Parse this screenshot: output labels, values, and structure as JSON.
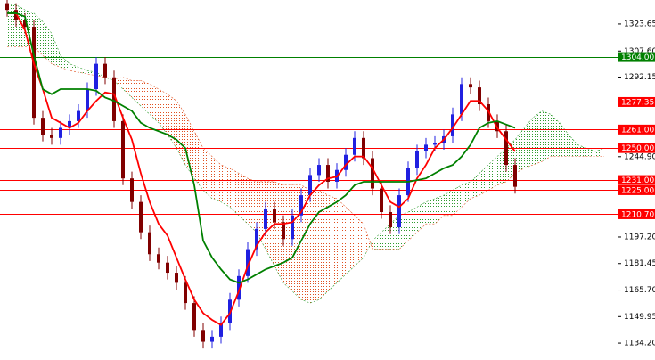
{
  "chart_data": {
    "type": "ichimoku",
    "ylim": [
      1126.3,
      1337.9
    ],
    "yticks": [
      1323.65,
      {
        "value": 1307.6,
        "label": "1307.60"
      },
      1292.15,
      {
        "value": 1244.9,
        "label": "1244.90"
      },
      {
        "value": 1197.2,
        "label": "1197.20"
      },
      1181.45,
      {
        "value": 1165.7,
        "label": "1165.70"
      },
      1149.95,
      {
        "value": 1134.2,
        "label": "1134.20"
      }
    ],
    "candles": {
      "up_color": "#2020e0",
      "down_color": "#800000",
      "open": [
        1336,
        1332,
        1326,
        1322,
        1268,
        1258,
        1256,
        1262,
        1266,
        1272,
        1285,
        1300,
        1292,
        1266,
        1232,
        1218,
        1200,
        1187,
        1182,
        1176,
        1170,
        1158,
        1142,
        1135,
        1138,
        1146,
        1160,
        1174,
        1190,
        1202,
        1214,
        1206,
        1196,
        1210,
        1222,
        1234,
        1240,
        1230,
        1237,
        1246,
        1256,
        1244,
        1226,
        1212,
        1203,
        1222,
        1238,
        1248,
        1252,
        1253,
        1257,
        1270,
        1288,
        1286,
        1276,
        1266,
        1260,
        1240
      ],
      "high": [
        1340,
        1336,
        1330,
        1326,
        1272,
        1262,
        1266,
        1270,
        1276,
        1289,
        1304,
        1304,
        1296,
        1270,
        1236,
        1222,
        1204,
        1191,
        1186,
        1180,
        1174,
        1162,
        1146,
        1142,
        1150,
        1164,
        1178,
        1194,
        1206,
        1218,
        1218,
        1210,
        1214,
        1226,
        1238,
        1244,
        1244,
        1241,
        1250,
        1260,
        1260,
        1248,
        1230,
        1216,
        1226,
        1242,
        1252,
        1256,
        1257,
        1261,
        1274,
        1292,
        1292,
        1290,
        1280,
        1270,
        1264,
        1244
      ],
      "low": [
        1328,
        1322,
        1318,
        1264,
        1254,
        1252,
        1252,
        1258,
        1262,
        1268,
        1281,
        1288,
        1262,
        1228,
        1214,
        1196,
        1183,
        1178,
        1172,
        1166,
        1154,
        1138,
        1131,
        1131,
        1134,
        1142,
        1156,
        1170,
        1186,
        1198,
        1202,
        1192,
        1192,
        1206,
        1218,
        1230,
        1226,
        1226,
        1233,
        1242,
        1240,
        1222,
        1208,
        1199,
        1199,
        1218,
        1234,
        1244,
        1248,
        1249,
        1253,
        1266,
        1282,
        1272,
        1262,
        1256,
        1236,
        1223
      ],
      "close": [
        1332,
        1326,
        1322,
        1268,
        1258,
        1256,
        1262,
        1266,
        1272,
        1285,
        1300,
        1292,
        1266,
        1232,
        1218,
        1200,
        1187,
        1182,
        1176,
        1170,
        1158,
        1142,
        1135,
        1138,
        1146,
        1160,
        1174,
        1190,
        1202,
        1214,
        1206,
        1196,
        1210,
        1222,
        1234,
        1240,
        1230,
        1237,
        1246,
        1256,
        1244,
        1226,
        1212,
        1203,
        1222,
        1238,
        1248,
        1252,
        1253,
        1257,
        1270,
        1288,
        1286,
        1276,
        1266,
        1260,
        1240,
        1227
      ]
    },
    "series": [
      {
        "color": "#ff0000",
        "values": [
          1330,
          1330,
          1320,
          1300,
          1285,
          1268,
          1265,
          1262,
          1265,
          1272,
          1278,
          1283,
          1282,
          1268,
          1255,
          1235,
          1218,
          1205,
          1198,
          1185,
          1172,
          1160,
          1152,
          1148,
          1145,
          1152,
          1165,
          1180,
          1192,
          1200,
          1205,
          1205,
          1206,
          1212,
          1222,
          1228,
          1232,
          1233,
          1240,
          1245,
          1245,
          1238,
          1228,
          1218,
          1215,
          1220,
          1232,
          1240,
          1250,
          1255,
          1262,
          1270,
          1278,
          1278,
          1272,
          1262,
          1255,
          1248
        ]
      },
      {
        "color": "#008000",
        "values": [
          1330,
          1330,
          1328,
          1305,
          1285,
          1282,
          1285,
          1285,
          1285,
          1285,
          1284,
          1280,
          1278,
          1275,
          1272,
          1265,
          1262,
          1260,
          1258,
          1255,
          1250,
          1228,
          1195,
          1185,
          1178,
          1172,
          1170,
          1172,
          1175,
          1178,
          1180,
          1182,
          1185,
          1195,
          1205,
          1212,
          1215,
          1218,
          1222,
          1228,
          1230,
          1230,
          1230,
          1230,
          1230,
          1230,
          1231,
          1232,
          1235,
          1238,
          1240,
          1245,
          1252,
          1262,
          1265,
          1266,
          1264,
          1262
        ]
      }
    ],
    "cloud": {
      "up_color": "#2e9b2e",
      "down_color": "#e05020",
      "span_a": [
        1335,
        1335,
        1332,
        1330,
        1325,
        1318,
        1305,
        1300,
        1298,
        1296,
        1295,
        1292,
        1290,
        1285,
        1280,
        1275,
        1270,
        1265,
        1258,
        1250,
        1240,
        1232,
        1225,
        1220,
        1218,
        1215,
        1210,
        1205,
        1200,
        1190,
        1180,
        1170,
        1165,
        1160,
        1158,
        1160,
        1165,
        1170,
        1175,
        1180,
        1185,
        1195,
        1200,
        1205,
        1210,
        1212,
        1215,
        1218,
        1220,
        1222,
        1225,
        1228,
        1230,
        1235,
        1240,
        1245,
        1250,
        1255,
        1262,
        1268,
        1272,
        1270,
        1265,
        1258,
        1252,
        1250,
        1248,
        1250
      ],
      "span_b": [
        1310,
        1310,
        1310,
        1310,
        1305,
        1300,
        1298,
        1296,
        1295,
        1294,
        1293,
        1292,
        1291,
        1292,
        1290,
        1290,
        1288,
        1285,
        1282,
        1278,
        1270,
        1260,
        1250,
        1245,
        1240,
        1238,
        1235,
        1232,
        1230,
        1230,
        1230,
        1228,
        1228,
        1228,
        1225,
        1225,
        1222,
        1220,
        1215,
        1210,
        1205,
        1190,
        1190,
        1190,
        1190,
        1195,
        1200,
        1205,
        1205,
        1210,
        1210,
        1215,
        1220,
        1222,
        1225,
        1228,
        1230,
        1235,
        1238,
        1240,
        1242,
        1245,
        1245,
        1245,
        1245,
        1245,
        1245,
        1245
      ]
    },
    "levels": [
      {
        "value": 1304.0,
        "label": "1304.00",
        "color": "#008000"
      },
      {
        "value": 1277.35,
        "label": "1277.35",
        "color": "#ff0000"
      },
      {
        "value": 1261.0,
        "label": "1261.00",
        "color": "#ff0000"
      },
      {
        "value": 1250.0,
        "label": "1250.00",
        "color": "#ff0000"
      },
      {
        "value": 1231.0,
        "label": "1231.00",
        "color": "#ff0000"
      },
      {
        "value": 1225.0,
        "label": "1225.00",
        "color": "#ff0000"
      },
      {
        "value": 1210.7,
        "label": "1210.70",
        "color": "#ff0000"
      }
    ]
  }
}
